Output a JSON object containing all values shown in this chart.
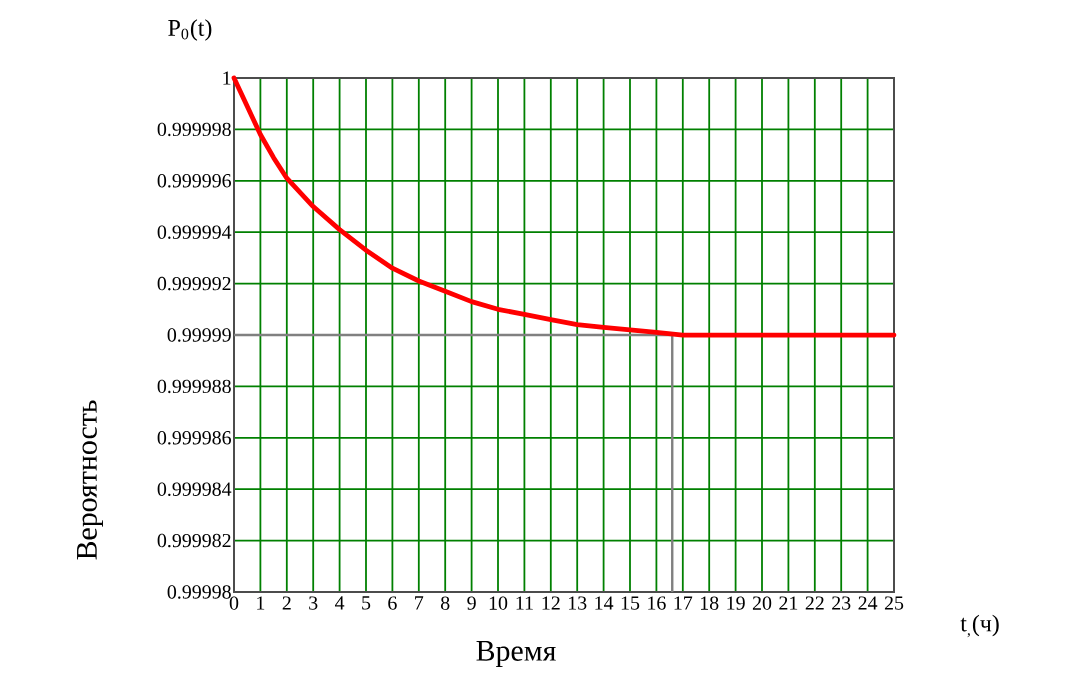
{
  "chart_data": {
    "type": "line",
    "xlabel": "Время",
    "ylabel": "Вероятность",
    "annotations": [
      "P$_{0}$(t)",
      "t$_{,}$(ч)"
    ],
    "x": [
      0,
      0.5,
      1,
      1.5,
      2,
      3,
      4,
      5,
      6,
      7,
      8,
      9,
      10,
      11,
      12,
      13,
      14,
      15,
      16,
      17,
      18,
      20,
      25
    ],
    "series": [
      {
        "color": "#ff0000",
        "values": [
          1,
          0.9999989,
          0.9999978,
          0.9999969,
          0.9999961,
          0.999995,
          0.9999941,
          0.9999933,
          0.9999926,
          0.9999921,
          0.9999917,
          0.9999913,
          0.999991,
          0.9999908,
          0.9999906,
          0.9999904,
          0.9999903,
          0.9999902,
          0.9999901,
          0.99999,
          0.99999,
          0.99999,
          0.99999
        ]
      }
    ],
    "xlim": [
      0,
      25
    ],
    "ylim": [
      0.99998,
      1
    ],
    "xticks": [
      0,
      1,
      2,
      3,
      4,
      5,
      6,
      7,
      8,
      9,
      10,
      11,
      12,
      13,
      14,
      15,
      16,
      17,
      18,
      19,
      20,
      21,
      22,
      23,
      24,
      25
    ],
    "yticks": [
      0.99998,
      0.999982,
      0.999984,
      0.999986,
      0.999988,
      0.99999,
      0.999992,
      0.999994,
      0.999996,
      0.999998,
      1
    ],
    "ref_lines": [
      {
        "axis": "y",
        "value": 0.99999,
        "color": "#808080"
      },
      {
        "axis": "x",
        "value": 16.6,
        "color": "#808080"
      }
    ],
    "grid": true,
    "line_style": "solid"
  }
}
